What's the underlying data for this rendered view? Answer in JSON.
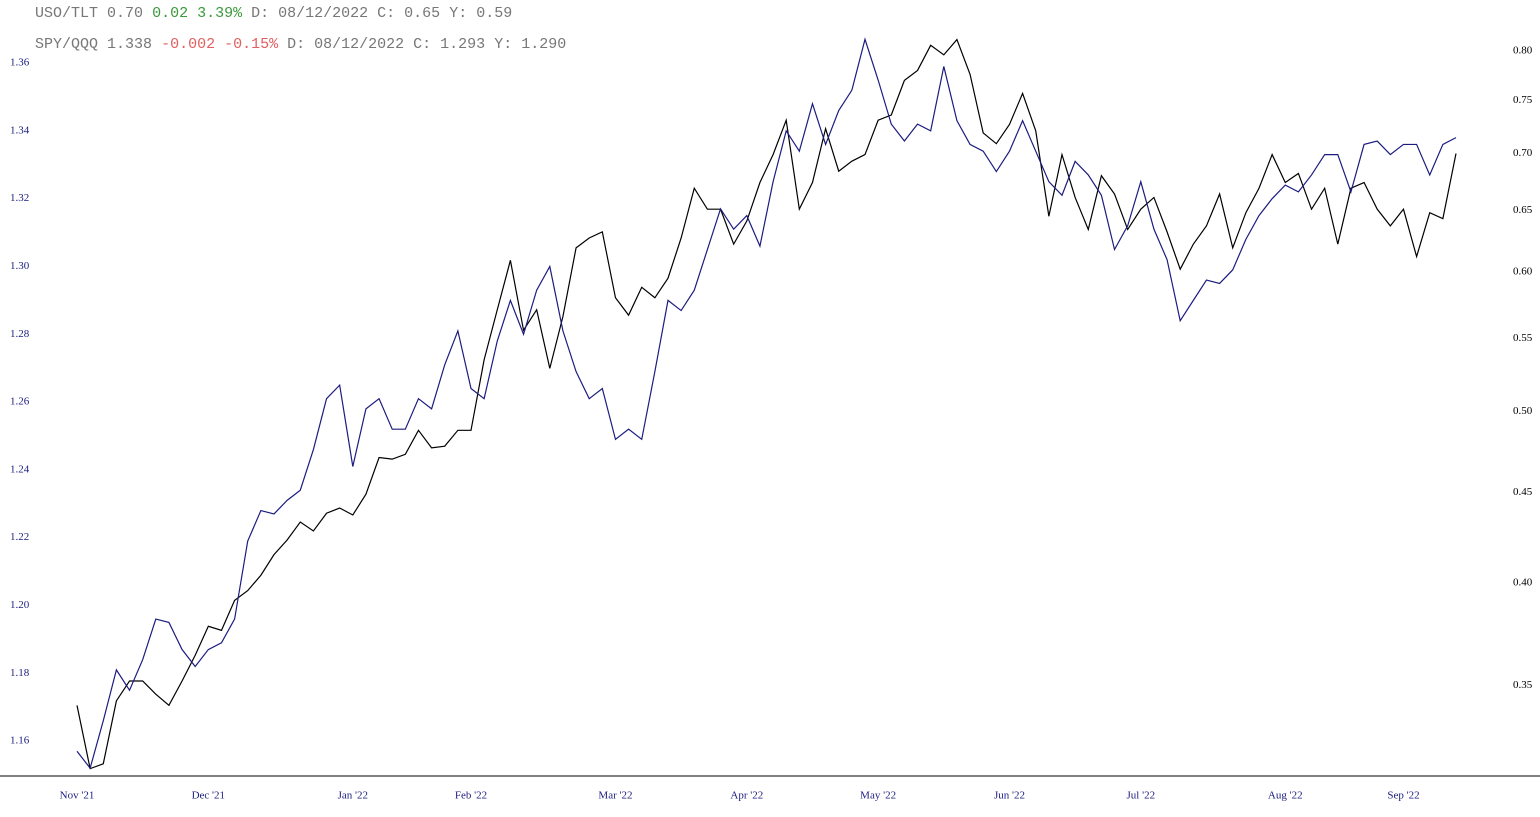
{
  "chart_data": {
    "type": "line",
    "categories": [
      "Nov '21",
      null,
      null,
      null,
      null,
      null,
      null,
      null,
      null,
      null,
      "Dec '21",
      null,
      null,
      null,
      null,
      null,
      null,
      null,
      null,
      null,
      null,
      "Jan '22",
      null,
      null,
      null,
      null,
      null,
      null,
      null,
      null,
      "Feb '22",
      null,
      null,
      null,
      null,
      null,
      null,
      null,
      null,
      null,
      null,
      "Mar '22",
      null,
      null,
      null,
      null,
      null,
      null,
      null,
      null,
      null,
      "Apr '22",
      null,
      null,
      null,
      null,
      null,
      null,
      null,
      null,
      null,
      "May '22",
      null,
      null,
      null,
      null,
      null,
      null,
      null,
      null,
      null,
      "Jun '22",
      null,
      null,
      null,
      null,
      null,
      null,
      null,
      null,
      null,
      "Jul '22",
      null,
      null,
      null,
      null,
      null,
      null,
      null,
      null,
      null,
      null,
      "Aug '22",
      null,
      null,
      null,
      null,
      null,
      null,
      null,
      null,
      "Sep '22",
      null,
      null,
      null,
      null
    ],
    "ylim": [
      1.1497,
      1.3786
    ],
    "yticks": [
      1.16,
      1.18,
      {
        "value": 1.2,
        "label": "1.20"
      },
      1.22,
      1.24,
      1.26,
      1.28,
      {
        "value": 1.3,
        "label": "1.30"
      },
      1.32,
      1.34,
      1.36
    ],
    "y2lim": [
      0.311,
      0.855
    ],
    "y2ticks": [
      0.35,
      {
        "value": 0.4,
        "label": "0.40"
      },
      0.45,
      {
        "value": 0.5,
        "label": "0.50"
      },
      0.55,
      {
        "value": 0.6,
        "label": "0.60"
      },
      0.65,
      {
        "value": 0.7,
        "label": "0.70"
      },
      0.75,
      {
        "value": 0.8,
        "label": "0.80"
      }
    ],
    "y2log": true,
    "series": [
      {
        "name": "USO/TLT",
        "color": "#000000",
        "axis": "y2",
        "header": [
          "0.70",
          "0.02",
          "3.39%",
          "D: 08/12/2022",
          "C: 0.65",
          "Y: 0.59"
        ],
        "header_colors": [
          "#777777",
          "#3a9a3a",
          "#3a9a3a",
          "#777777",
          "#777777",
          "#777777"
        ],
        "values": [
          0.341,
          0.314,
          0.316,
          0.343,
          0.352,
          0.352,
          0.346,
          0.341,
          0.352,
          0.364,
          0.378,
          0.376,
          0.391,
          0.396,
          0.404,
          0.415,
          0.423,
          0.433,
          0.428,
          0.438,
          0.441,
          0.437,
          0.449,
          0.471,
          0.47,
          0.473,
          0.488,
          0.477,
          0.478,
          0.488,
          0.488,
          0.535,
          0.571,
          0.609,
          0.556,
          0.571,
          0.529,
          0.566,
          0.619,
          0.627,
          0.632,
          0.58,
          0.567,
          0.588,
          0.58,
          0.595,
          0.627,
          0.669,
          0.651,
          0.651,
          0.622,
          0.641,
          0.674,
          0.699,
          0.731,
          0.651,
          0.674,
          0.723,
          0.684,
          0.693,
          0.699,
          0.731,
          0.736,
          0.77,
          0.78,
          0.806,
          0.796,
          0.812,
          0.776,
          0.719,
          0.709,
          0.727,
          0.757,
          0.721,
          0.645,
          0.699,
          0.661,
          0.634,
          0.68,
          0.664,
          0.634,
          0.651,
          0.661,
          0.632,
          0.602,
          0.622,
          0.637,
          0.664,
          0.619,
          0.648,
          0.669,
          0.699,
          0.674,
          0.682,
          0.651,
          0.669,
          0.622,
          0.669,
          0.674,
          0.651,
          0.637,
          0.651,
          0.612,
          0.648,
          0.643,
          0.7
        ]
      },
      {
        "name": "SPY/QQQ",
        "color": "#1c1c80",
        "axis": "y",
        "header": [
          "1.338",
          "-0.002",
          "-0.15%",
          "D: 08/12/2022",
          "C: 1.293",
          "Y: 1.290"
        ],
        "header_colors": [
          "#777777",
          "#e06060",
          "#e06060",
          "#777777",
          "#777777",
          "#777777"
        ],
        "values": [
          1.157,
          1.152,
          1.166,
          1.181,
          1.175,
          1.184,
          1.196,
          1.195,
          1.187,
          1.182,
          1.187,
          1.189,
          1.196,
          1.219,
          1.228,
          1.227,
          1.231,
          1.234,
          1.246,
          1.261,
          1.265,
          1.241,
          1.258,
          1.261,
          1.252,
          1.252,
          1.261,
          1.258,
          1.271,
          1.281,
          1.264,
          1.261,
          1.278,
          1.29,
          1.28,
          1.293,
          1.3,
          1.281,
          1.269,
          1.261,
          1.264,
          1.249,
          1.252,
          1.249,
          1.269,
          1.29,
          1.287,
          1.293,
          1.305,
          1.317,
          1.311,
          1.315,
          1.306,
          1.325,
          1.34,
          1.334,
          1.348,
          1.336,
          1.346,
          1.352,
          1.367,
          1.355,
          1.342,
          1.337,
          1.342,
          1.34,
          1.359,
          1.343,
          1.336,
          1.334,
          1.328,
          1.334,
          1.343,
          1.334,
          1.325,
          1.321,
          1.331,
          1.327,
          1.321,
          1.305,
          1.312,
          1.325,
          1.311,
          1.302,
          1.284,
          1.29,
          1.296,
          1.295,
          1.299,
          1.308,
          1.315,
          1.32,
          1.324,
          1.322,
          1.327,
          1.333,
          1.333,
          1.322,
          1.336,
          1.337,
          1.333,
          1.336,
          1.336,
          1.327,
          1.336,
          1.338
        ]
      }
    ],
    "left_tick_color": "#1c1c80",
    "right_tick_color": "#000000"
  }
}
